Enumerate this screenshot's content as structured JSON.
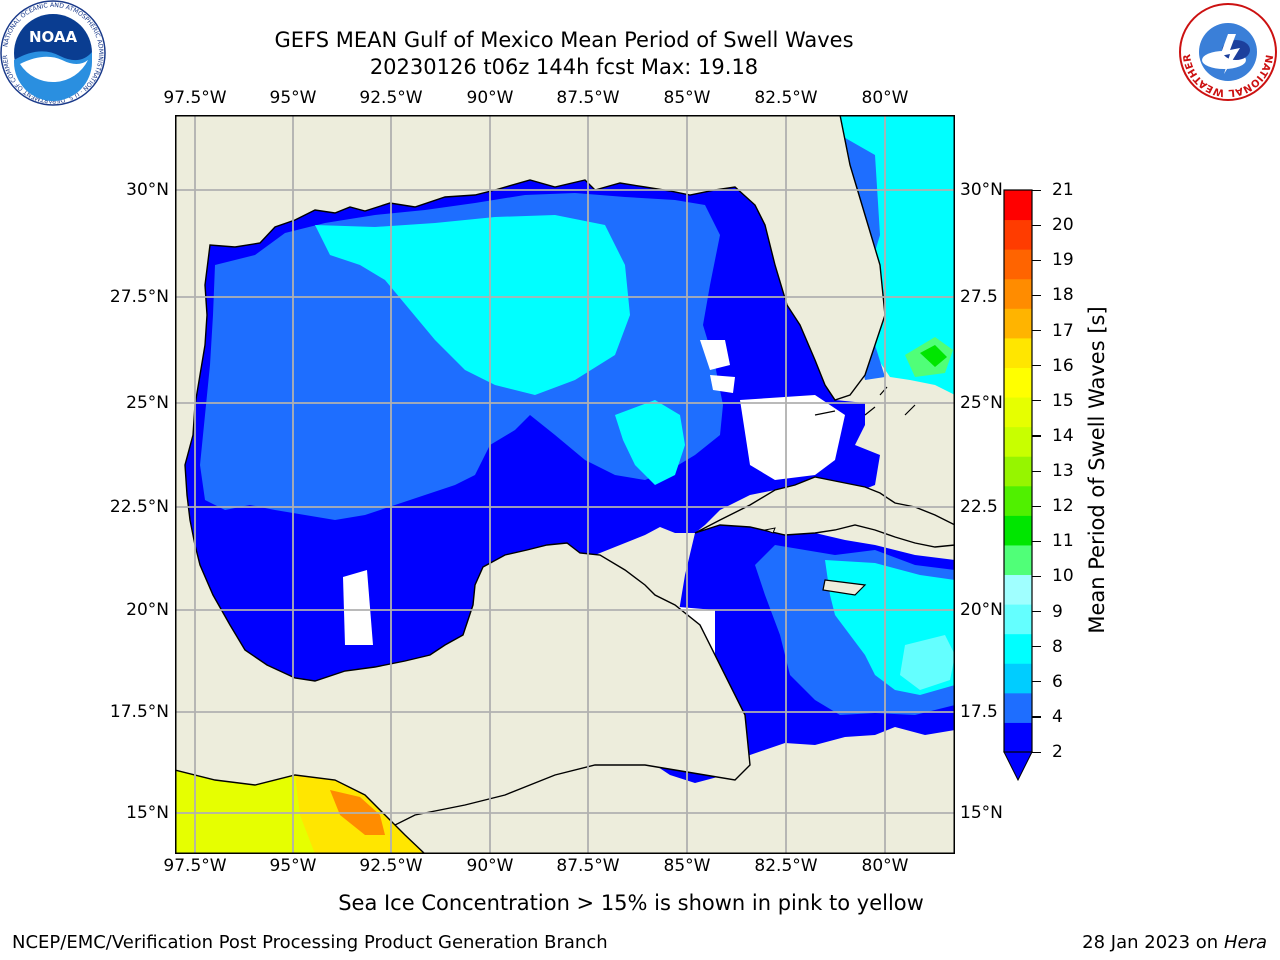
{
  "header": {
    "title_line1": "GEFS MEAN Gulf of Mexico Mean Period of Swell Waves",
    "title_line2": "20230126 t06z 144h fcst   Max: 19.18"
  },
  "logos": {
    "left": {
      "name": "NOAA",
      "ring_text": "NATIONAL OCEANIC AND ATMOSPHERIC ADMINISTRATION · U.S. DEPARTMENT OF COMMERCE"
    },
    "right": {
      "name": "NATIONAL WEATHER SERVICE"
    }
  },
  "map": {
    "lon_labels": [
      "97.5°W",
      "95°W",
      "92.5°W",
      "90°W",
      "87.5°W",
      "85°W",
      "82.5°W",
      "80°W"
    ],
    "lat_labels": [
      "30°N",
      "27.5°N",
      "25°N",
      "22.5°N",
      "20°N",
      "17.5°N",
      "15°N"
    ],
    "lat_labels_right": [
      "30°N",
      "27.5",
      "25°N",
      "22.5",
      "20°N",
      "17.5",
      "15°N"
    ],
    "colors": {
      "land": "#ededdc",
      "grid": "#b0b0b0",
      "coast": "#000000"
    }
  },
  "colorbar": {
    "label": "Mean Period of Swell Waves [s]",
    "ticks": [
      "2",
      "4",
      "6",
      "8",
      "9",
      "10",
      "11",
      "12",
      "13",
      "14",
      "15",
      "16",
      "17",
      "18",
      "19",
      "20",
      "21"
    ],
    "colors": [
      "#0000ff",
      "#1e6eff",
      "#00cdff",
      "#00ffff",
      "#64ffff",
      "#a0ffff",
      "#50ff78",
      "#00e600",
      "#50f000",
      "#96f500",
      "#c8ff00",
      "#e6ff00",
      "#ffff00",
      "#ffe600",
      "#ffb400",
      "#ff8c00",
      "#ff6400",
      "#ff3c00",
      "#ff0000"
    ]
  },
  "caption": "Sea Ice Concentration > 15% is shown in pink to yellow",
  "footer": {
    "left": "NCEP/EMC/Verification Post Processing Product Generation Branch",
    "right_prefix": "28 Jan 2023 on ",
    "right_host": "Hera"
  }
}
